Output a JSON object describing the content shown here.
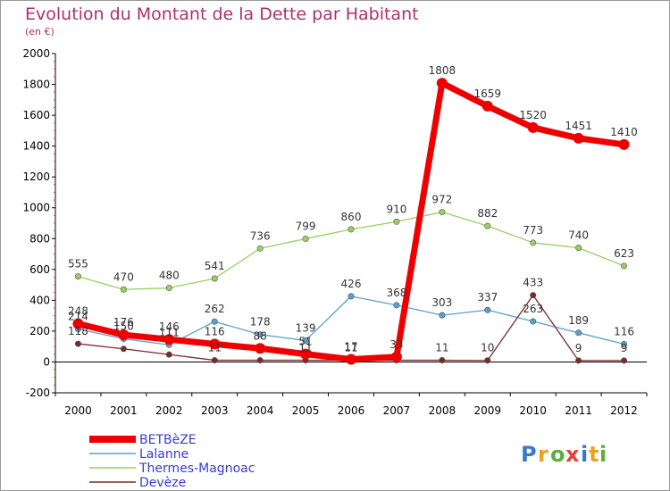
{
  "chart_data": {
    "type": "line",
    "title": "Evolution du Montant de la Dette par Habitant",
    "subtitle": "(en €)",
    "x": [
      "2000",
      "2001",
      "2002",
      "2003",
      "2004",
      "2005",
      "2006",
      "2007",
      "2008",
      "2009",
      "2010",
      "2011",
      "2012"
    ],
    "ylim": [
      -200,
      2000
    ],
    "yticks": [
      -200,
      0,
      200,
      400,
      600,
      800,
      1000,
      1200,
      1400,
      1600,
      1800,
      2000
    ],
    "grid": false,
    "legend_position": "bottom-left",
    "series": [
      {
        "name": "BETBèZE",
        "color": "#ee0000",
        "values": [
          248,
          176,
          146,
          116,
          88,
          51,
          17,
          33,
          1808,
          1659,
          1520,
          1451,
          1410
        ],
        "labels": [
          "248",
          "176",
          "146",
          "116",
          "88",
          "51",
          "17",
          "33",
          "1808",
          "1659",
          "1520",
          "1451",
          "1410"
        ]
      },
      {
        "name": "Lalanne",
        "color": "#5a9fd0",
        "values": [
          214,
          150,
          111,
          262,
          178,
          139,
          426,
          368,
          303,
          337,
          263,
          189,
          116
        ],
        "labels": [
          "214",
          "150",
          "111",
          "262",
          "178",
          "139",
          "426",
          "368",
          "303",
          "337",
          "263",
          "189",
          "116"
        ]
      },
      {
        "name": "Thermes-Magnoac",
        "color": "#99d060",
        "values": [
          555,
          470,
          480,
          541,
          736,
          799,
          860,
          910,
          972,
          882,
          773,
          740,
          623
        ],
        "labels": [
          "555",
          "470",
          "480",
          "541",
          "736",
          "799",
          "860",
          "910",
          "972",
          "882",
          "773",
          "740",
          "623"
        ]
      },
      {
        "name": "Devèze",
        "color": "#7a2a2a",
        "values": [
          118,
          85,
          48,
          11,
          11,
          11,
          11,
          11,
          11,
          10,
          433,
          9,
          9
        ],
        "labels": [
          "118",
          "",
          "",
          "11",
          "",
          "11",
          "11",
          "",
          "11",
          "10",
          "433",
          "9",
          "9"
        ]
      }
    ]
  },
  "brand": {
    "logo_letters": [
      "P",
      "r",
      "o",
      "x",
      "i",
      "t",
      "i"
    ],
    "logo_colors": [
      "#3a78c8",
      "#f0a020",
      "#5ab040",
      "#e84040",
      "#3a78c8",
      "#f0a020",
      "#5ab040"
    ]
  }
}
